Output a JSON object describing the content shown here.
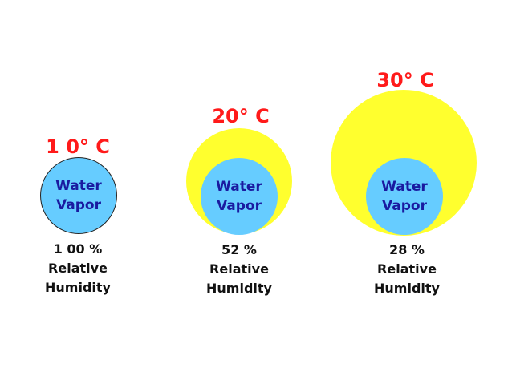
{
  "panels": [
    {
      "temperature": "1 0° C",
      "inner_label_1": "Water",
      "inner_label_2": "Vapor",
      "humidity_value": "1 00 %",
      "humidity_label_1": "Relative",
      "humidity_label_2": "Humidity"
    },
    {
      "temperature": "20° C",
      "inner_label_1": "Water",
      "inner_label_2": "Vapor",
      "humidity_value": "52 %",
      "humidity_label_1": "Relative",
      "humidity_label_2": "Humidity"
    },
    {
      "temperature": "30° C",
      "inner_label_1": "Water",
      "inner_label_2": "Vapor",
      "humidity_value": "28 %",
      "humidity_label_1": "Relative",
      "humidity_label_2": "Humidity"
    }
  ],
  "colors": {
    "temperature": "#ff1a1a",
    "saturation_circle": "#ffff2e",
    "water_vapor_circle": "#66ccff",
    "vapor_text": "#1a1aa0"
  }
}
